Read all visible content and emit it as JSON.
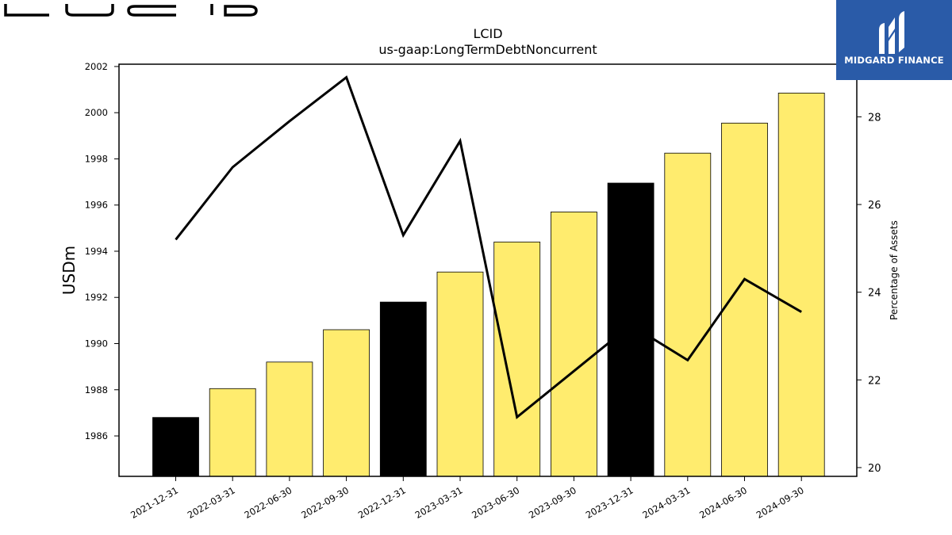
{
  "brand": {
    "company_logo_icon": "lucid-wordmark-logo",
    "badge_icon": "midgard-logo-icon",
    "badge_text": "MIDGARD FINANCE",
    "badge_color": "#2a5ba8"
  },
  "chart_data": {
    "type": "bar",
    "title": "LCID",
    "subtitle": "us-gaap:LongTermDebtNoncurrent",
    "ylabel": "USDm",
    "y2label": "Percentage of Assets",
    "ylim": [
      1984.25,
      2002.1
    ],
    "y2lim": [
      19.8,
      29.2
    ],
    "yticks": [
      1986,
      1988,
      1990,
      1992,
      1994,
      1996,
      1998,
      2000,
      2002
    ],
    "y2ticks": [
      20,
      22,
      24,
      26,
      28
    ],
    "categories": [
      "2021-12-31",
      "2022-03-31",
      "2022-06-30",
      "2022-09-30",
      "2022-12-31",
      "2023-03-31",
      "2023-06-30",
      "2023-09-30",
      "2023-12-31",
      "2024-03-31",
      "2024-06-30",
      "2024-09-30"
    ],
    "values": [
      1986.8,
      1988.05,
      1989.2,
      1990.6,
      1991.8,
      1993.1,
      1994.4,
      1995.7,
      1996.95,
      1998.25,
      1999.55,
      2000.85
    ],
    "line": [
      25.2,
      26.85,
      27.9,
      28.9,
      25.3,
      27.45,
      21.15,
      22.2,
      23.25,
      22.45,
      24.3,
      23.55
    ],
    "bar_colors": [
      "#000000",
      "#ffec6e",
      "#ffec6e",
      "#ffec6e",
      "#000000",
      "#ffec6e",
      "#ffec6e",
      "#ffec6e",
      "#000000",
      "#ffec6e",
      "#ffec6e",
      "#ffec6e"
    ],
    "line_color": "#000000",
    "grid": false,
    "legend": "none"
  }
}
